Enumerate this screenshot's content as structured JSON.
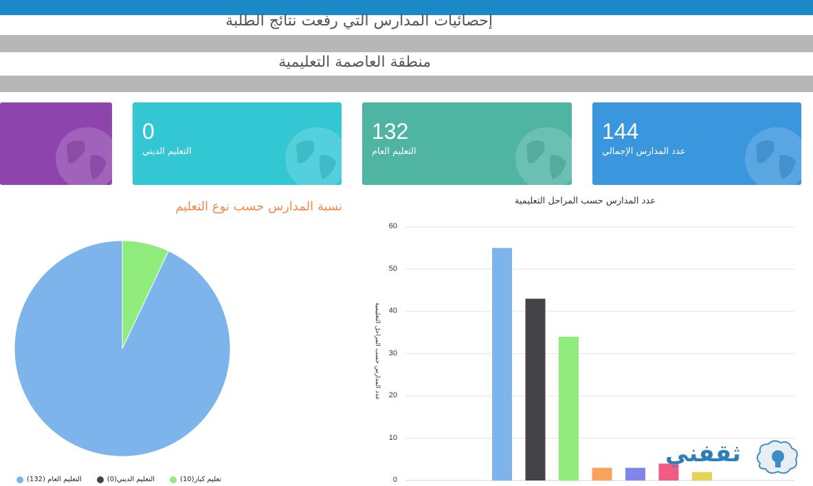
{
  "page": {
    "title": "إحصائيات المدارس التي رفعت نتائج الطلبة",
    "region": "منطقة العاصمة التعليمية"
  },
  "cards": [
    {
      "id": "purple",
      "value": "",
      "label": "",
      "color": "#8e44ad"
    },
    {
      "id": "religious",
      "value": "0",
      "label": "التعليم الديني",
      "color": "#33c7d4"
    },
    {
      "id": "general",
      "value": "132",
      "label": "التعليم العام",
      "color": "#4fb5a2"
    },
    {
      "id": "total",
      "value": "144",
      "label": "عدد المدارس الإجمالي",
      "color": "#3a96dd"
    }
  ],
  "pie": {
    "title": "نسبة المدارس حسب نوع التعليم",
    "legend": [
      {
        "label": "التعليم العام (132)",
        "color": "#7cb4eb"
      },
      {
        "label": "التعليم الديني(0)",
        "color": "#434348"
      },
      {
        "label": "تعليم كبار(10)",
        "color": "#90ed7d"
      }
    ]
  },
  "bar": {
    "title": "عدد المدارس حسب المراحل التعليمية",
    "ylabel": "عدد المدارس حسب المراحل التعليمية",
    "yticks": [
      "60",
      "50",
      "40",
      "30",
      "20",
      "10",
      "0"
    ]
  },
  "watermark": {
    "text": "ثقفني"
  },
  "chart_data": [
    {
      "type": "pie",
      "title": "نسبة المدارس حسب نوع التعليم",
      "slices": [
        {
          "name": "التعليم العام",
          "value": 132,
          "color": "#7cb4eb"
        },
        {
          "name": "التعليم الديني",
          "value": 0,
          "color": "#434348"
        },
        {
          "name": "تعليم كبار",
          "value": 10,
          "color": "#90ed7d"
        }
      ]
    },
    {
      "type": "bar",
      "title": "عدد المدارس حسب المراحل التعليمية",
      "ylabel": "عدد المدارس حسب المراحل التعليمية",
      "ylim": [
        0,
        60
      ],
      "grid": true,
      "values": [
        55,
        43,
        34,
        3,
        3,
        4,
        2
      ],
      "colors": [
        "#7cb4eb",
        "#434348",
        "#90ed7d",
        "#f7a35c",
        "#8085e9",
        "#f15c80",
        "#e4d354"
      ]
    }
  ]
}
